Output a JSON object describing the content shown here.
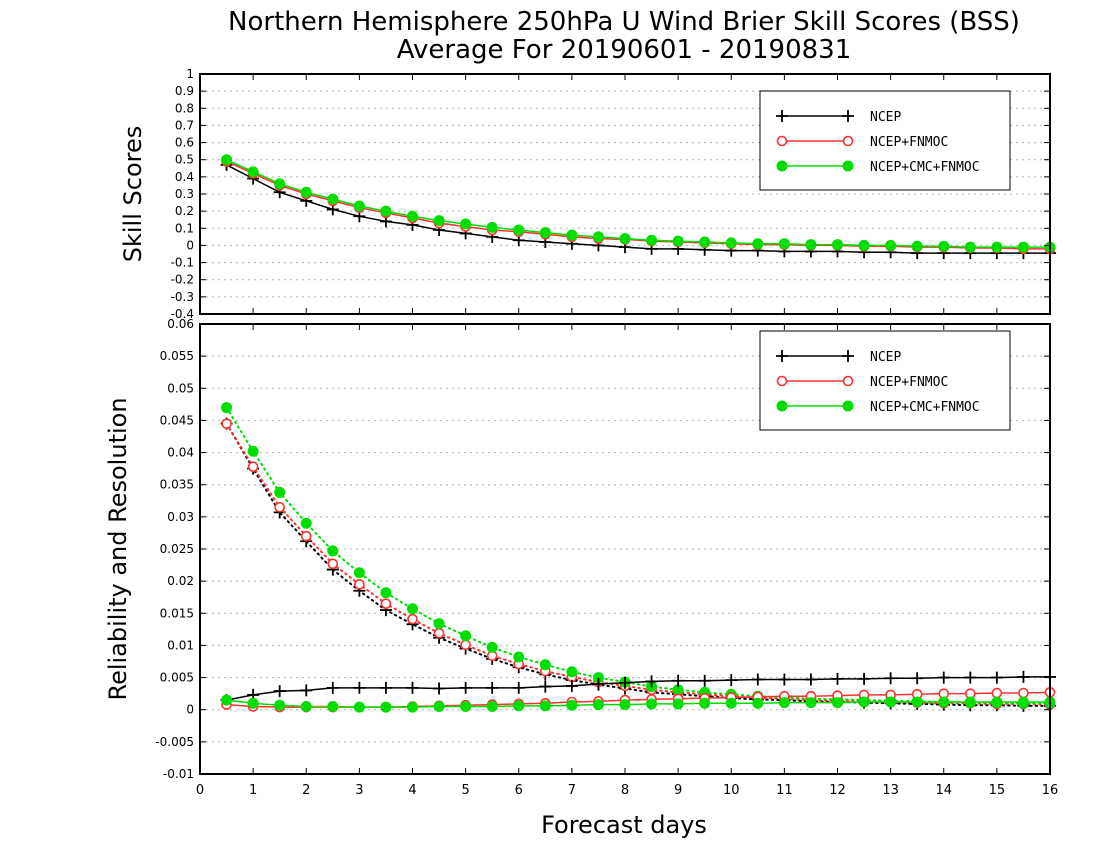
{
  "title_line1": "Northern Hemisphere 250hPa U Wind Brier Skill Scores (BSS)",
  "title_line2": "Average For 20190601 - 20190831",
  "colors": {
    "NCEP": "#000000",
    "NCEP+FNMOC": "#ff3030",
    "NCEP+CMC+FNMOC": "#00dd00",
    "grid": "#b0b0b0"
  },
  "chart_data": [
    {
      "type": "line",
      "ylabel": "Skill Scores",
      "xlabel": "",
      "xlim": [
        0,
        16
      ],
      "ylim": [
        -0.4,
        1
      ],
      "xticks": [
        "0",
        "1",
        "2",
        "3",
        "4",
        "5",
        "6",
        "7",
        "8",
        "9",
        "10",
        "11",
        "12",
        "13",
        "14",
        "15",
        "16"
      ],
      "yticks": [
        "-0.4",
        "-0.3",
        "-0.2",
        "-0.1",
        "0",
        "0.1",
        "0.2",
        "0.3",
        "0.4",
        "0.5",
        "0.6",
        "0.7",
        "0.8",
        "0.9",
        "1"
      ],
      "grid": true,
      "legend": "top-right",
      "x": [
        0.5,
        1,
        1.5,
        2,
        2.5,
        3,
        3.5,
        4,
        4.5,
        5,
        5.5,
        6,
        6.5,
        7,
        7.5,
        8,
        8.5,
        9,
        9.5,
        10,
        10.5,
        11,
        11.5,
        12,
        12.5,
        13,
        13.5,
        14,
        14.5,
        15,
        15.5,
        16
      ],
      "series": [
        {
          "name": "NCEP",
          "marker": "plus",
          "style": "solid",
          "values": [
            0.47,
            0.39,
            0.31,
            0.26,
            0.21,
            0.17,
            0.14,
            0.12,
            0.09,
            0.07,
            0.05,
            0.03,
            0.02,
            0.01,
            0.0,
            -0.01,
            -0.02,
            -0.02,
            -0.025,
            -0.03,
            -0.03,
            -0.035,
            -0.035,
            -0.035,
            -0.04,
            -0.04,
            -0.045,
            -0.045,
            -0.045,
            -0.045,
            -0.045,
            -0.045
          ]
        },
        {
          "name": "NCEP+FNMOC",
          "marker": "open-circle",
          "style": "solid",
          "values": [
            0.49,
            0.42,
            0.35,
            0.3,
            0.26,
            0.22,
            0.19,
            0.16,
            0.13,
            0.11,
            0.09,
            0.08,
            0.065,
            0.05,
            0.04,
            0.035,
            0.025,
            0.02,
            0.015,
            0.01,
            0.005,
            0.005,
            0.0,
            0.0,
            -0.005,
            -0.005,
            -0.01,
            -0.01,
            -0.015,
            -0.015,
            -0.02,
            -0.02
          ]
        },
        {
          "name": "NCEP+CMC+FNMOC",
          "marker": "filled-circle",
          "style": "solid",
          "values": [
            0.5,
            0.43,
            0.36,
            0.31,
            0.27,
            0.23,
            0.2,
            0.17,
            0.145,
            0.125,
            0.105,
            0.09,
            0.075,
            0.06,
            0.05,
            0.04,
            0.03,
            0.025,
            0.02,
            0.015,
            0.01,
            0.01,
            0.005,
            0.005,
            0.0,
            0.0,
            -0.005,
            -0.005,
            -0.01,
            -0.01,
            -0.01,
            -0.01
          ]
        }
      ]
    },
    {
      "type": "line",
      "ylabel": "Reliability and Resolution",
      "xlabel": "Forecast days",
      "xlim": [
        0,
        16
      ],
      "ylim": [
        -0.01,
        0.06
      ],
      "xticks": [
        "0",
        "1",
        "2",
        "3",
        "4",
        "5",
        "6",
        "7",
        "8",
        "9",
        "10",
        "11",
        "12",
        "13",
        "14",
        "15",
        "16"
      ],
      "yticks": [
        "-0.01",
        "-0.005",
        "0",
        "0.005",
        "0.01",
        "0.015",
        "0.02",
        "0.025",
        "0.03",
        "0.035",
        "0.04",
        "0.045",
        "0.05",
        "0.055",
        "0.06"
      ],
      "grid": true,
      "legend": "top-right",
      "x": [
        0.5,
        1,
        1.5,
        2,
        2.5,
        3,
        3.5,
        4,
        4.5,
        5,
        5.5,
        6,
        6.5,
        7,
        7.5,
        8,
        8.5,
        9,
        9.5,
        10,
        10.5,
        11,
        11.5,
        12,
        12.5,
        13,
        13.5,
        14,
        14.5,
        15,
        15.5,
        16
      ],
      "series": [
        {
          "name": "NCEP",
          "marker": "plus",
          "style": "dotted",
          "kind": "resolution",
          "values": [
            0.0445,
            0.0375,
            0.0307,
            0.0262,
            0.0218,
            0.0185,
            0.0155,
            0.0133,
            0.0112,
            0.0095,
            0.0079,
            0.0066,
            0.0055,
            0.0046,
            0.0039,
            0.0033,
            0.0027,
            0.0024,
            0.0021,
            0.0018,
            0.0016,
            0.0015,
            0.0013,
            0.0012,
            0.0011,
            0.001,
            0.0009,
            0.0008,
            0.0007,
            0.0007,
            0.0006,
            0.0006
          ]
        },
        {
          "name": "NCEP+FNMOC",
          "marker": "open-circle",
          "style": "dotted",
          "kind": "resolution",
          "values": [
            0.0445,
            0.0378,
            0.0315,
            0.027,
            0.0227,
            0.0195,
            0.0165,
            0.0141,
            0.0119,
            0.0101,
            0.0084,
            0.0071,
            0.006,
            0.0051,
            0.0043,
            0.0037,
            0.0031,
            0.0027,
            0.0024,
            0.0021,
            0.0019,
            0.0017,
            0.0015,
            0.0014,
            0.0013,
            0.0012,
            0.0011,
            0.001,
            0.001,
            0.0009,
            0.0009,
            0.0008
          ]
        },
        {
          "name": "NCEP+CMC+FNMOC",
          "marker": "filled-circle",
          "style": "dotted",
          "kind": "resolution",
          "values": [
            0.047,
            0.0402,
            0.0338,
            0.029,
            0.0247,
            0.0213,
            0.0182,
            0.0157,
            0.0134,
            0.0115,
            0.0097,
            0.0082,
            0.007,
            0.0059,
            0.005,
            0.0043,
            0.0036,
            0.0031,
            0.0027,
            0.0024,
            0.0021,
            0.0019,
            0.0017,
            0.0016,
            0.0015,
            0.0014,
            0.0013,
            0.0012,
            0.0011,
            0.0011,
            0.001,
            0.001
          ]
        },
        {
          "name": "NCEP",
          "marker": "plus",
          "style": "solid",
          "kind": "reliability",
          "values": [
            0.0015,
            0.0023,
            0.0029,
            0.003,
            0.0034,
            0.0034,
            0.0034,
            0.0034,
            0.0033,
            0.0034,
            0.0034,
            0.0034,
            0.0036,
            0.0037,
            0.004,
            0.0042,
            0.0044,
            0.0045,
            0.0045,
            0.0046,
            0.0047,
            0.0047,
            0.0047,
            0.0048,
            0.0048,
            0.0049,
            0.0049,
            0.005,
            0.005,
            0.005,
            0.0051,
            0.0051
          ]
        },
        {
          "name": "NCEP+FNMOC",
          "marker": "open-circle",
          "style": "solid",
          "kind": "reliability",
          "values": [
            0.0008,
            0.0005,
            0.0004,
            0.0004,
            0.0004,
            0.0004,
            0.0004,
            0.0005,
            0.0006,
            0.0007,
            0.0008,
            0.0009,
            0.001,
            0.0012,
            0.0013,
            0.0015,
            0.0016,
            0.0017,
            0.0018,
            0.0019,
            0.002,
            0.0021,
            0.0021,
            0.0022,
            0.0023,
            0.0023,
            0.0024,
            0.0025,
            0.0025,
            0.0026,
            0.0026,
            0.0027
          ]
        },
        {
          "name": "NCEP+CMC+FNMOC",
          "marker": "filled-circle",
          "style": "solid",
          "kind": "reliability",
          "values": [
            0.0015,
            0.001,
            0.0007,
            0.0005,
            0.0005,
            0.0004,
            0.0004,
            0.0004,
            0.0005,
            0.0005,
            0.0005,
            0.0006,
            0.0006,
            0.0007,
            0.0008,
            0.0008,
            0.0009,
            0.0009,
            0.001,
            0.001,
            0.001,
            0.0011,
            0.0011,
            0.0011,
            0.0012,
            0.0012,
            0.0012,
            0.0012,
            0.0012,
            0.0012,
            0.0012,
            0.0012
          ]
        }
      ]
    }
  ]
}
